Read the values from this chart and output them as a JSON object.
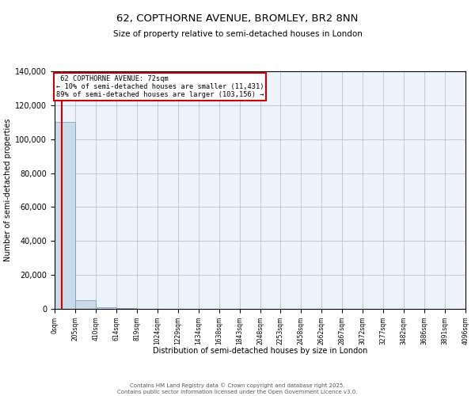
{
  "title": "62, COPTHORNE AVENUE, BROMLEY, BR2 8NN",
  "subtitle": "Size of property relative to semi-detached houses in London",
  "xlabel": "Distribution of semi-detached houses by size in London",
  "ylabel": "Number of semi-detached properties",
  "property_size": 72,
  "property_label": "62 COPTHORNE AVENUE: 72sqm",
  "smaller_pct": 10,
  "smaller_n": 11431,
  "larger_pct": 89,
  "larger_n": 103156,
  "bar_color": "#ccd9e8",
  "bar_edge_color": "#6699bb",
  "vline_color": "#cc0000",
  "annotation_box_color": "#cc0000",
  "background_color": "#eef2fa",
  "footer_text": "Contains HM Land Registry data © Crown copyright and database right 2025.\nContains public sector information licensed under the Open Government Licence v3.0.",
  "bin_edges": [
    0,
    205,
    410,
    614,
    819,
    1024,
    1229,
    1434,
    1638,
    1843,
    2048,
    2253,
    2458,
    2662,
    2867,
    3072,
    3277,
    3482,
    3686,
    3891,
    4096
  ],
  "bin_labels": [
    "0sqm",
    "205sqm",
    "410sqm",
    "614sqm",
    "819sqm",
    "1024sqm",
    "1229sqm",
    "1434sqm",
    "1638sqm",
    "1843sqm",
    "2048sqm",
    "2253sqm",
    "2458sqm",
    "2662sqm",
    "2867sqm",
    "3072sqm",
    "3277sqm",
    "3482sqm",
    "3686sqm",
    "3891sqm",
    "4096sqm"
  ],
  "bar_heights": [
    110000,
    5000,
    800,
    300,
    150,
    80,
    50,
    30,
    20,
    15,
    10,
    8,
    6,
    5,
    4,
    3,
    3,
    2,
    2,
    1
  ],
  "ylim": [
    0,
    140000
  ],
  "yticks": [
    0,
    20000,
    40000,
    60000,
    80000,
    100000,
    120000,
    140000
  ]
}
